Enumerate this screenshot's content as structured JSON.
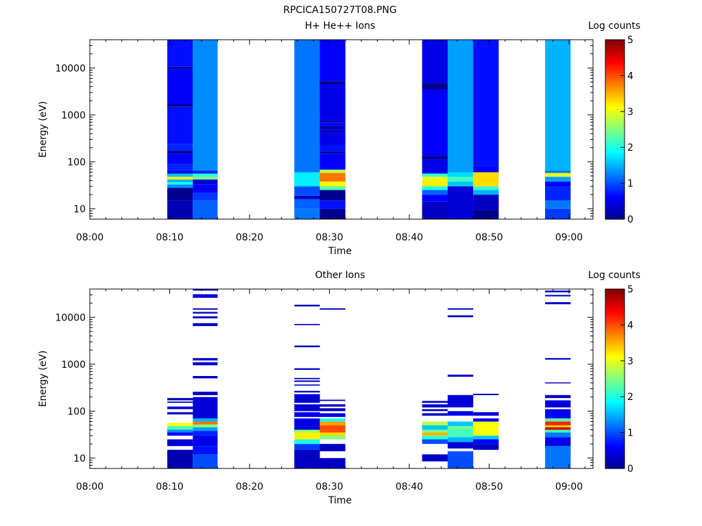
{
  "figure_title": "RPCICA150727T08.PNG",
  "colors": {
    "colormap": [
      "#00008f",
      "#0000ff",
      "#0080ff",
      "#00ffff",
      "#80ff80",
      "#ffff00",
      "#ff8000",
      "#ff0000",
      "#800000"
    ],
    "axis": "#000000",
    "background": "#ffffff"
  },
  "chart_data": [
    {
      "type": "heatmap",
      "title": "H+ He++ Ions",
      "xlabel": "Time",
      "ylabel": "Energy (eV)",
      "y_scale": "log",
      "ylim": [
        6,
        40000
      ],
      "xlim": [
        "08:00",
        "09:03"
      ],
      "x_tick_labels": [
        "08:00",
        "08:10",
        "08:20",
        "08:30",
        "08:40",
        "08:50",
        "09:00"
      ],
      "y_tick_labels": [
        "10",
        "100",
        "1000",
        "10000"
      ],
      "colorbar": {
        "label": "Log counts",
        "range": [
          0,
          5
        ],
        "tick_labels": [
          "0",
          "1",
          "2",
          "3",
          "4",
          "5"
        ]
      },
      "grid": false,
      "columns": [
        {
          "start": "08:09.7",
          "end": "08:12.9",
          "bins": [
            [
              6,
              15,
              0.2
            ],
            [
              15,
              28,
              0
            ],
            [
              28,
              33,
              1.3
            ],
            [
              33,
              37,
              2
            ],
            [
              37,
              42,
              1.5
            ],
            [
              42,
              48,
              3.2
            ],
            [
              48,
              56,
              1.6
            ],
            [
              56,
              65,
              0.5
            ],
            [
              65,
              90,
              0.8
            ],
            [
              90,
              150,
              0.6
            ],
            [
              150,
              170,
              0
            ],
            [
              170,
              240,
              0.8
            ],
            [
              240,
              1500,
              0.7
            ],
            [
              1500,
              1700,
              0
            ],
            [
              1700,
              9500,
              0.6
            ],
            [
              9500,
              10500,
              0
            ],
            [
              10500,
              40000,
              0.7
            ]
          ]
        },
        {
          "start": "08:12.9",
          "end": "08:16.0",
          "bins": [
            [
              6,
              15,
              1.1
            ],
            [
              15,
              22,
              0.9
            ],
            [
              22,
              33,
              0.6
            ],
            [
              33,
              42,
              0.4
            ],
            [
              42,
              48,
              2.5
            ],
            [
              48,
              56,
              2.1
            ],
            [
              56,
              65,
              0.8
            ],
            [
              65,
              40000,
              1.3
            ]
          ]
        },
        {
          "start": "08:25.6",
          "end": "08:28.8",
          "bins": [
            [
              6,
              10,
              1.2
            ],
            [
              10,
              16,
              1.1
            ],
            [
              16,
              19,
              0.3
            ],
            [
              19,
              30,
              1.0
            ],
            [
              30,
              60,
              1.8
            ],
            [
              60,
              40000,
              1.2
            ]
          ]
        },
        {
          "start": "08:28.8",
          "end": "08:32.0",
          "bins": [
            [
              6,
              10,
              0
            ],
            [
              10,
              15,
              0.7
            ],
            [
              15,
              25,
              0
            ],
            [
              25,
              30,
              2.3
            ],
            [
              30,
              38,
              3.1
            ],
            [
              38,
              58,
              3.8
            ],
            [
              58,
              68,
              2.8
            ],
            [
              68,
              150,
              0.6
            ],
            [
              150,
              165,
              0
            ],
            [
              165,
              230,
              0.7
            ],
            [
              230,
              420,
              0.5
            ],
            [
              420,
              450,
              0
            ],
            [
              450,
              500,
              0.6
            ],
            [
              500,
              560,
              0
            ],
            [
              560,
              700,
              0.6
            ],
            [
              700,
              760,
              0
            ],
            [
              760,
              4500,
              0.5
            ],
            [
              4500,
              5200,
              0
            ],
            [
              5200,
              40000,
              0.6
            ]
          ]
        },
        {
          "start": "08:41.6",
          "end": "08:44.8",
          "bins": [
            [
              6,
              14,
              0.3
            ],
            [
              14,
              20,
              0.6
            ],
            [
              20,
              25,
              1.1
            ],
            [
              25,
              30,
              2.0
            ],
            [
              30,
              40,
              3.2
            ],
            [
              40,
              48,
              3.0
            ],
            [
              48,
              56,
              2.2
            ],
            [
              56,
              60,
              0.8
            ],
            [
              60,
              115,
              0.5
            ],
            [
              115,
              135,
              0
            ],
            [
              135,
              3500,
              0.6
            ],
            [
              3500,
              4800,
              0
            ],
            [
              4800,
              40000,
              0.5
            ]
          ]
        },
        {
          "start": "08:44.8",
          "end": "08:48.0",
          "bins": [
            [
              6,
              30,
              0.4
            ],
            [
              30,
              38,
              1.6
            ],
            [
              38,
              48,
              2.2
            ],
            [
              48,
              60,
              1.7
            ],
            [
              60,
              40000,
              1.4
            ]
          ]
        },
        {
          "start": "08:48.0",
          "end": "08:51.2",
          "bins": [
            [
              6,
              9.5,
              0
            ],
            [
              9.5,
              20,
              0.3
            ],
            [
              20,
              25,
              1.5
            ],
            [
              25,
              30,
              2.1
            ],
            [
              30,
              60,
              3.3
            ],
            [
              60,
              80,
              0.6
            ],
            [
              80,
              40000,
              0.7
            ]
          ]
        },
        {
          "start": "08:57.0",
          "end": "09:00.2",
          "bins": [
            [
              6,
              10,
              0.9
            ],
            [
              10,
              15,
              1.2
            ],
            [
              15,
              30,
              0.8
            ],
            [
              30,
              38,
              0.6
            ],
            [
              38,
              48,
              1.4
            ],
            [
              48,
              58,
              3.0
            ],
            [
              58,
              65,
              1.2
            ],
            [
              65,
              40000,
              1.5
            ]
          ]
        }
      ]
    },
    {
      "type": "heatmap",
      "title": "Other Ions",
      "xlabel": "Time",
      "ylabel": "Energy (eV)",
      "y_scale": "log",
      "ylim": [
        6,
        40000
      ],
      "xlim": [
        "08:00",
        "09:03"
      ],
      "x_tick_labels": [
        "08:00",
        "08:10",
        "08:20",
        "08:30",
        "08:40",
        "08:50",
        "09:00"
      ],
      "y_tick_labels": [
        "10",
        "100",
        "1000",
        "10000"
      ],
      "colorbar": {
        "label": "Log counts",
        "range": [
          0,
          5
        ],
        "tick_labels": [
          "0",
          "1",
          "2",
          "3",
          "4",
          "5"
        ]
      },
      "grid": false,
      "columns": [
        {
          "start": "08:09.7",
          "end": "08:12.9",
          "bins": [
            [
              6,
              15,
              0.2
            ],
            [
              18,
              25,
              0.4
            ],
            [
              30,
              35,
              0.6
            ],
            [
              35,
              40,
              1.3
            ],
            [
              40,
              48,
              2.2
            ],
            [
              48,
              56,
              3.1
            ],
            [
              85,
              95,
              0.3
            ],
            [
              110,
              125,
              0.4
            ],
            [
              150,
              160,
              0.3
            ],
            [
              170,
              190,
              0.3
            ]
          ]
        },
        {
          "start": "08:12.9",
          "end": "08:16.0",
          "bins": [
            [
              6,
              12,
              1.0
            ],
            [
              12,
              18,
              0.7
            ],
            [
              18,
              30,
              0.5
            ],
            [
              30,
              38,
              0.8
            ],
            [
              38,
              45,
              1.4
            ],
            [
              45,
              52,
              2.5
            ],
            [
              52,
              60,
              3.8
            ],
            [
              60,
              70,
              1.5
            ],
            [
              70,
              200,
              0.4
            ],
            [
              220,
              260,
              0.3
            ],
            [
              500,
              560,
              0.3
            ],
            [
              950,
              1100,
              0.3
            ],
            [
              1200,
              1350,
              0.3
            ],
            [
              6500,
              7500,
              0.3
            ],
            [
              9500,
              10500,
              0.3
            ],
            [
              12000,
              13000,
              0.3
            ],
            [
              14500,
              15500,
              0.3
            ],
            [
              26000,
              31000,
              0.4
            ],
            [
              37000,
              40000,
              0.3
            ]
          ]
        },
        {
          "start": "08:25.6",
          "end": "08:28.8",
          "bins": [
            [
              6,
              15,
              0.3
            ],
            [
              15,
              20,
              0.9
            ],
            [
              20,
              25,
              2.0
            ],
            [
              25,
              35,
              3.2
            ],
            [
              35,
              40,
              2.6
            ],
            [
              40,
              48,
              0.4
            ],
            [
              48,
              70,
              0.5
            ],
            [
              75,
              95,
              0.5
            ],
            [
              100,
              140,
              0.4
            ],
            [
              150,
              230,
              0.4
            ],
            [
              250,
              270,
              0.3
            ],
            [
              350,
              370,
              0.3
            ],
            [
              420,
              450,
              0.3
            ],
            [
              480,
              510,
              0.3
            ],
            [
              760,
              820,
              0.3
            ],
            [
              2300,
              2500,
              0.3
            ],
            [
              6800,
              7200,
              0.3
            ],
            [
              17000,
              18500,
              0.3
            ]
          ]
        },
        {
          "start": "08:28.8",
          "end": "08:32.0",
          "bins": [
            [
              6,
              10,
              0.3
            ],
            [
              14,
              20,
              0.3
            ],
            [
              25,
              30,
              2.5
            ],
            [
              30,
              35,
              3.3
            ],
            [
              35,
              50,
              4.0
            ],
            [
              50,
              60,
              3.6
            ],
            [
              60,
              70,
              2.0
            ],
            [
              75,
              90,
              0.5
            ],
            [
              100,
              115,
              0.3
            ],
            [
              125,
              140,
              0.3
            ],
            [
              165,
              175,
              0.3
            ],
            [
              14500,
              15500,
              0.3
            ]
          ]
        },
        {
          "start": "08:41.6",
          "end": "08:44.8",
          "bins": [
            [
              8.5,
              12,
              0.3
            ],
            [
              20,
              25,
              1.0
            ],
            [
              25,
              30,
              2.1
            ],
            [
              30,
              35,
              3.5
            ],
            [
              35,
              40,
              2.5
            ],
            [
              40,
              50,
              1.6
            ],
            [
              50,
              60,
              2.8
            ],
            [
              80,
              90,
              0.3
            ],
            [
              100,
              110,
              0.3
            ],
            [
              120,
              140,
              0.3
            ],
            [
              150,
              165,
              0.3
            ]
          ]
        },
        {
          "start": "08:44.8",
          "end": "08:48.0",
          "bins": [
            [
              6,
              14,
              1.0
            ],
            [
              16,
              22,
              0.4
            ],
            [
              22,
              28,
              1.5
            ],
            [
              28,
              40,
              2.2
            ],
            [
              40,
              48,
              2.4
            ],
            [
              48,
              60,
              1.6
            ],
            [
              80,
              100,
              0.5
            ],
            [
              120,
              220,
              0.4
            ],
            [
              540,
              600,
              0.3
            ],
            [
              10000,
              11000,
              0.3
            ],
            [
              14500,
              15500,
              0.3
            ]
          ]
        },
        {
          "start": "08:48.0",
          "end": "08:51.2",
          "bins": [
            [
              15,
              20,
              0.3
            ],
            [
              20,
              25,
              0.6
            ],
            [
              25,
              30,
              1.6
            ],
            [
              30,
              60,
              3.1
            ],
            [
              60,
              70,
              0.6
            ],
            [
              80,
              95,
              0.4
            ],
            [
              220,
              235,
              0.3
            ]
          ]
        },
        {
          "start": "08:57.0",
          "end": "09:00.2",
          "bins": [
            [
              6,
              18,
              1.2
            ],
            [
              18,
              28,
              0.5
            ],
            [
              28,
              35,
              1.2
            ],
            [
              35,
              40,
              2.2
            ],
            [
              40,
              45,
              4.6
            ],
            [
              45,
              50,
              3.4
            ],
            [
              50,
              60,
              4.2
            ],
            [
              60,
              70,
              2.3
            ],
            [
              70,
              110,
              0.6
            ],
            [
              120,
              170,
              0.4
            ],
            [
              190,
              220,
              0.3
            ],
            [
              390,
              410,
              0.3
            ],
            [
              1250,
              1350,
              0.3
            ],
            [
              19000,
              21000,
              0.3
            ],
            [
              28000,
              30000,
              0.3
            ],
            [
              34000,
              37000,
              0.3
            ]
          ]
        }
      ]
    }
  ]
}
